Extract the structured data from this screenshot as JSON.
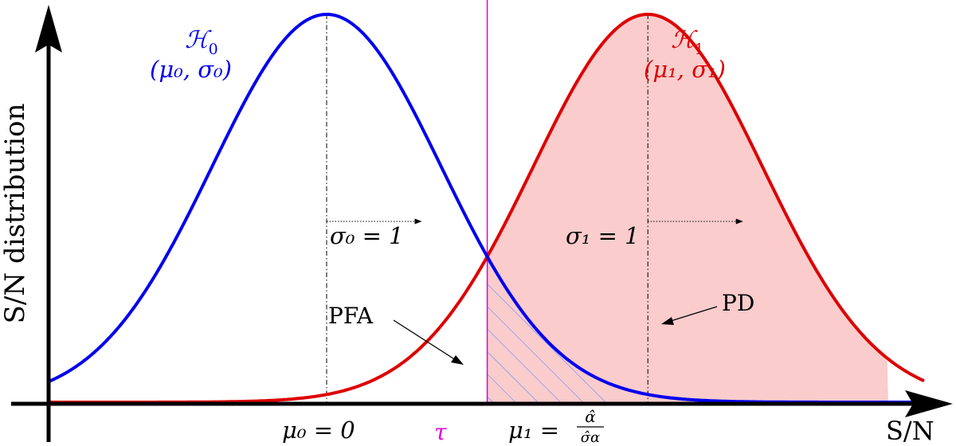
{
  "chart_data": {
    "type": "line",
    "title": "",
    "xlabel": "S/N",
    "ylabel": "S/N distribution",
    "xlim": [
      -3.1,
      7.8
    ],
    "ylim": [
      0,
      1.0
    ],
    "threshold": 1.4,
    "series": [
      {
        "name": "H0",
        "mean": 0,
        "sigma": 1,
        "color": "#0000ee"
      },
      {
        "name": "H1",
        "mean": 2.8,
        "sigma": 1,
        "color": "#dd0000"
      }
    ],
    "colors": {
      "h0": "#0000ee",
      "h1": "#dd0000",
      "threshold": "#dd00dd",
      "pd_fill": "#fbcccc",
      "pfa_hatch": "#5b8cff",
      "axis": "#000000"
    },
    "labels": {
      "h0_title": "ℋ",
      "h0_title_sub": "0",
      "h0_params": "(μ₀, σ₀)",
      "h1_title": "ℋ",
      "h1_title_sub": "1",
      "h1_params": "(μ₁, σ₁)",
      "sigma0": "σ₀ = 1",
      "sigma1": "σ₁ = 1",
      "pfa": "PFA",
      "pd": "PD",
      "mu0_tick": "μ₀ = 0",
      "tau_tick": "τ",
      "mu1_tick_lhs": "μ₁ =",
      "mu1_frac_num": "α̂",
      "mu1_frac_den": "σ̂α"
    }
  }
}
